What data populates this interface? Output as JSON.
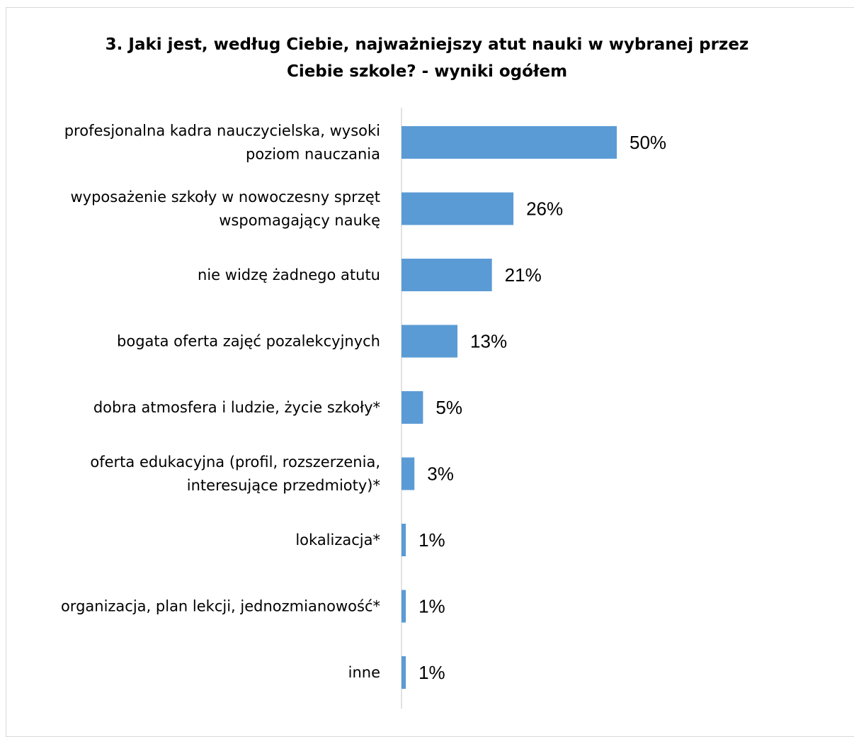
{
  "chart_data": {
    "type": "bar",
    "orientation": "horizontal",
    "title": "3. Jaki jest, według Ciebie, najważniejszy atut nauki w wybranej przez\nCiebie szkole? - wyniki ogółem",
    "categories": [
      "profesjonalna kadra nauczycielska, wysoki\npoziom nauczania",
      "wyposażenie szkoły w nowoczesny sprzęt\nwspomagający naukę",
      "nie widzę żadnego atutu",
      "bogata oferta zajęć pozalekcyjnych",
      "dobra atmosfera i ludzie, życie szkoły*",
      "oferta edukacyjna (profil, rozszerzenia,\ninteresujące przedmioty)*",
      "lokalizacja*",
      "organizacja, plan lekcji, jednozmianowość*",
      "inne"
    ],
    "values": [
      50,
      26,
      21,
      13,
      5,
      3,
      1,
      1,
      1
    ],
    "value_labels": [
      "50%",
      "26%",
      "21%",
      "13%",
      "5%",
      "3%",
      "1%",
      "1%",
      "1%"
    ],
    "unit": "%",
    "bar_color": "#5b9bd5",
    "axis_color": "#d9d9d9",
    "grid": false,
    "legend": "none"
  }
}
